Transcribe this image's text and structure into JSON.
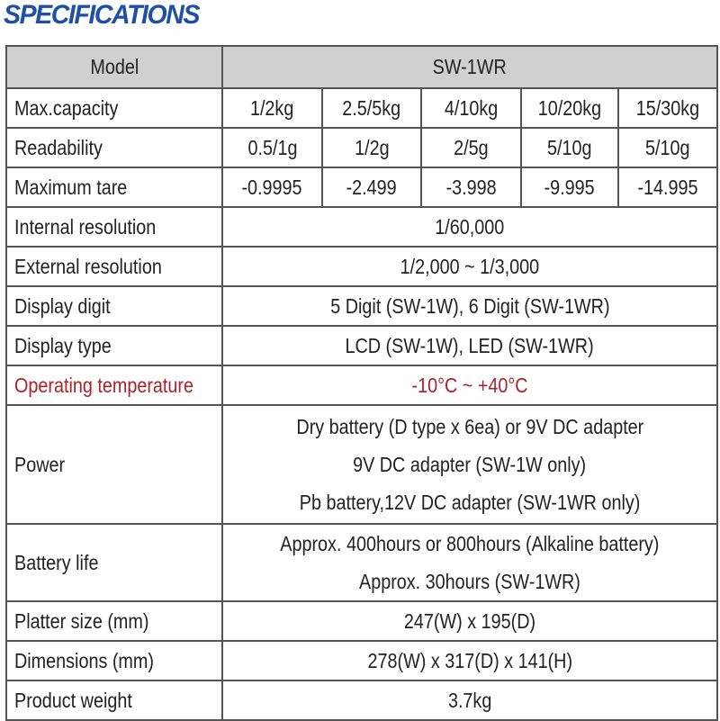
{
  "title": "SPECIFICATIONS",
  "accent_color": "#1f4fa8",
  "highlight_color": "#a8232a",
  "header": {
    "label": "Model",
    "value": "SW-1WR"
  },
  "multi_rows": [
    {
      "label": "Max.capacity",
      "values": [
        "1/2kg",
        "2.5/5kg",
        "4/10kg",
        "10/20kg",
        "15/30kg"
      ]
    },
    {
      "label": "Readability",
      "values": [
        "0.5/1g",
        "1/2g",
        "2/5g",
        "5/10g",
        "5/10g"
      ]
    },
    {
      "label": "Maximum tare",
      "values": [
        "-0.9995",
        "-2.499",
        "-3.998",
        "-9.995",
        "-14.995"
      ]
    }
  ],
  "rows": [
    {
      "label": "Internal resolution",
      "lines": [
        "1/60,000"
      ]
    },
    {
      "label": "External resolution",
      "lines": [
        "1/2,000 ~ 1/3,000"
      ]
    },
    {
      "label": "Display digit",
      "lines": [
        "5 Digit (SW-1W), 6 Digit (SW-1WR)"
      ]
    },
    {
      "label": "Display type",
      "lines": [
        "LCD (SW-1W), LED (SW-1WR)"
      ]
    },
    {
      "label": "Operating temperature",
      "lines": [
        "-10°C ~ +40°C"
      ],
      "highlight": true
    },
    {
      "label": "Power",
      "lines": [
        "Dry battery (D type x 6ea) or 9V DC adapter",
        "9V DC adapter (SW-1W only)",
        "Pb battery,12V DC adapter (SW-1WR only)"
      ]
    },
    {
      "label": "Battery life",
      "lines": [
        "Approx. 400hours or 800hours (Alkaline battery)",
        "Approx. 30hours (SW-1WR)"
      ]
    },
    {
      "label": "Platter size (mm)",
      "lines": [
        "247(W) x 195(D)"
      ]
    },
    {
      "label": "Dimensions (mm)",
      "lines": [
        "278(W) x 317(D) x 141(H)"
      ]
    },
    {
      "label": "Product weight",
      "lines": [
        "3.7kg"
      ]
    }
  ]
}
